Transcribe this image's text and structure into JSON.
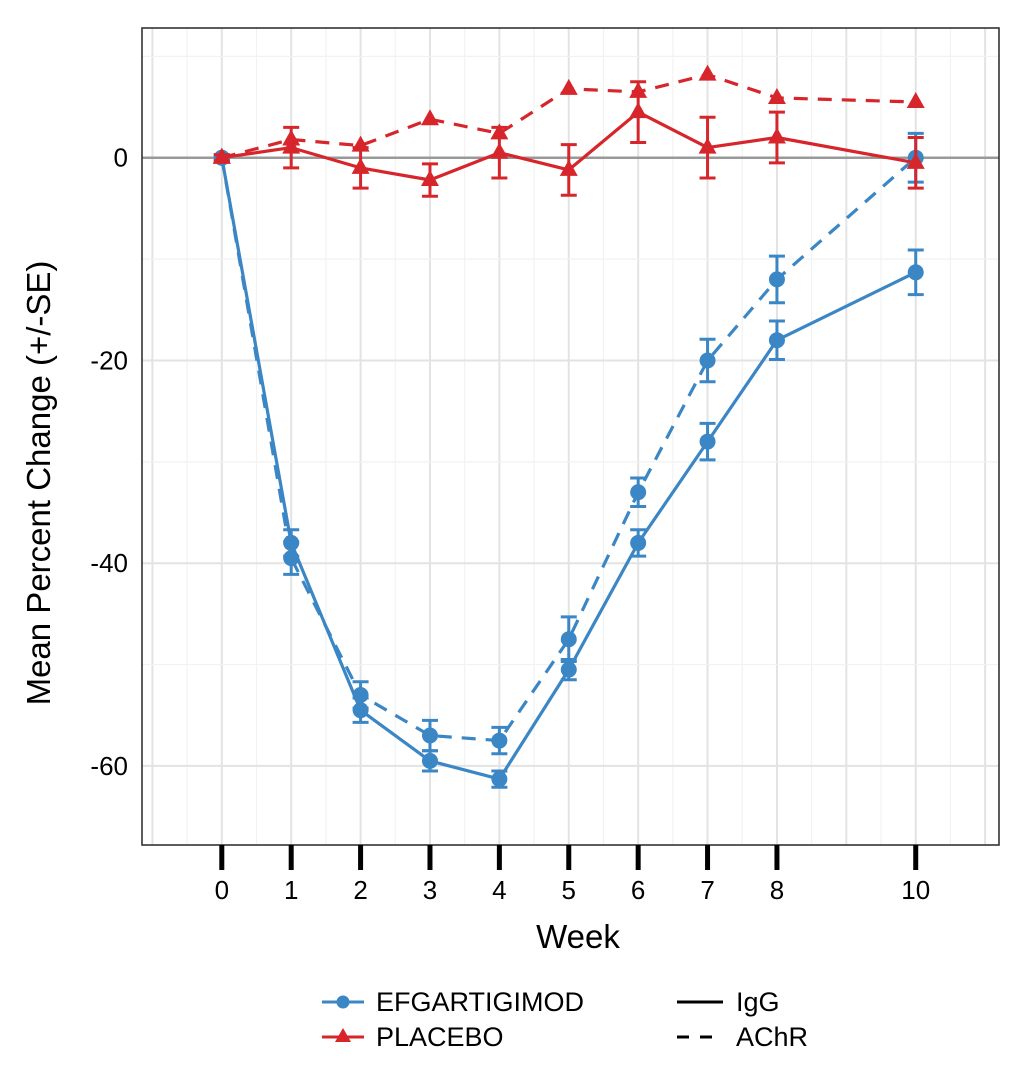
{
  "chart_data": {
    "type": "line",
    "xlabel": "Week",
    "ylabel": "Mean Percent Change (+/-SE)",
    "xlim": [
      -1.15,
      11.2
    ],
    "ylim": [
      -67.8,
      12.8
    ],
    "x_ticks": [
      0,
      1,
      2,
      3,
      4,
      5,
      6,
      7,
      8,
      10
    ],
    "x_tick_labels": [
      "0",
      "1",
      "2",
      "3",
      "4",
      "5",
      "6",
      "7",
      "8",
      "10"
    ],
    "y_ticks": [
      0,
      -20,
      -40,
      -60
    ],
    "y_tick_labels": [
      "0",
      "-20",
      "-40",
      "-60"
    ],
    "grid": true,
    "reference_line_y": 0,
    "series": [
      {
        "name": "EFGARTIGIMOD",
        "measure": "IgG",
        "color": "#3b86c4",
        "marker": "circle",
        "line_style": "solid",
        "x": [
          0,
          1,
          2,
          3,
          4,
          5,
          6,
          7,
          8,
          10
        ],
        "y": [
          0,
          -38,
          -54.5,
          -59.5,
          -61.3,
          -50.5,
          -38,
          -28,
          -18,
          -11.3
        ],
        "se": [
          0.3,
          1.3,
          1.2,
          1,
          0.8,
          1,
          1.3,
          1.8,
          1.9,
          2.2
        ]
      },
      {
        "name": "EFGARTIGIMOD",
        "measure": "AChR",
        "color": "#3b86c4",
        "marker": "circle",
        "line_style": "dashed",
        "x": [
          0,
          1,
          2,
          3,
          4,
          5,
          6,
          7,
          8,
          10
        ],
        "y": [
          0,
          -39.5,
          -53,
          -57,
          -57.5,
          -47.5,
          -33,
          -20,
          -12,
          0
        ],
        "se": [
          0.3,
          1.6,
          1.3,
          1.5,
          1.3,
          2.2,
          1.4,
          2.1,
          2.3,
          2.4
        ]
      },
      {
        "name": "PLACEBO",
        "measure": "IgG",
        "color": "#d7262b",
        "marker": "triangle",
        "line_style": "solid",
        "x": [
          0,
          1,
          2,
          3,
          4,
          5,
          6,
          7,
          8,
          10
        ],
        "y": [
          0,
          1,
          -1,
          -2.2,
          0.5,
          -1.2,
          4.5,
          1,
          2,
          -0.5
        ],
        "se": [
          0.3,
          2,
          2,
          1.6,
          2.5,
          2.5,
          3,
          3,
          2.5,
          2.5
        ]
      },
      {
        "name": "PLACEBO",
        "measure": "AChR",
        "color": "#d7262b",
        "marker": "triangle",
        "line_style": "dashed",
        "x": [
          0,
          1,
          2,
          3,
          4,
          5,
          6,
          7,
          8,
          10
        ],
        "y": [
          0,
          1.8,
          1.2,
          3.8,
          2.4,
          6.8,
          6.5,
          8.2,
          5.9,
          5.5
        ]
      }
    ],
    "legend": {
      "placement": "bottom",
      "groups": [
        {
          "label": "EFGARTIGIMOD",
          "color": "#3b86c4",
          "marker": "circle"
        },
        {
          "label": "PLACEBO",
          "color": "#d7262b",
          "marker": "triangle"
        }
      ],
      "line_types": [
        {
          "label": "IgG",
          "line_style": "solid"
        },
        {
          "label": "AChR",
          "line_style": "dashed"
        }
      ]
    }
  }
}
